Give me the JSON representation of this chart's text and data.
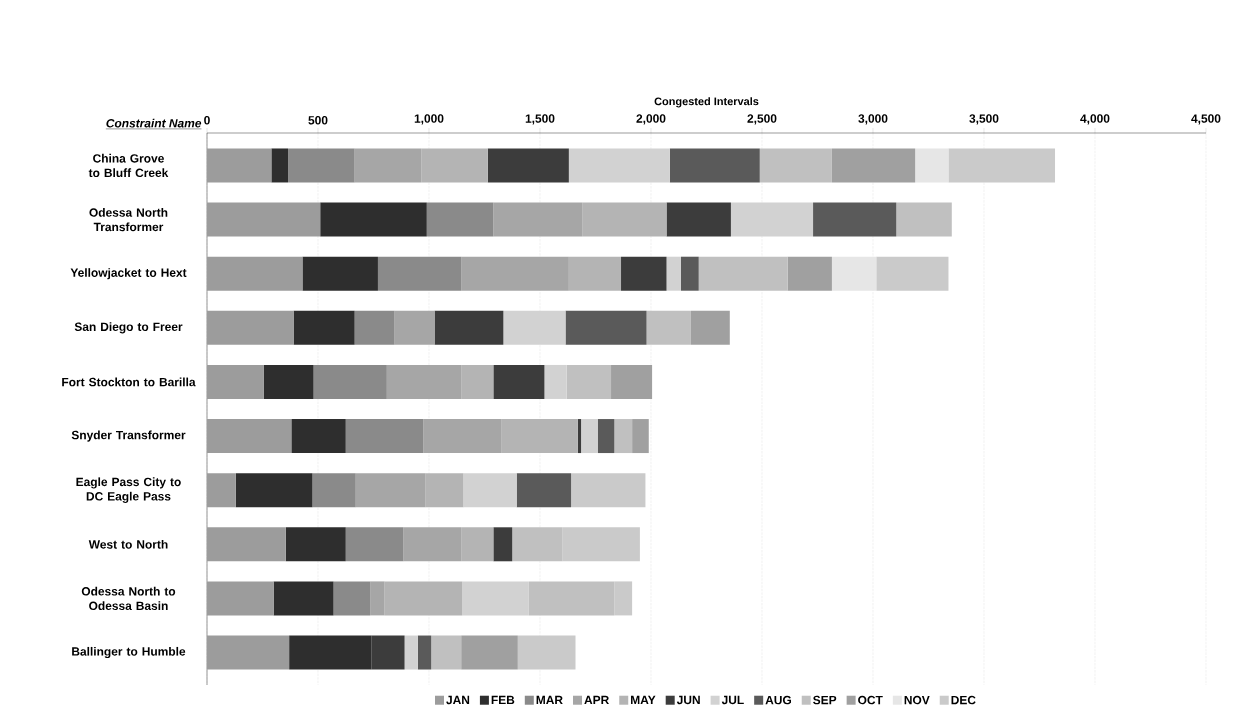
{
  "chart_data": {
    "type": "bar",
    "orientation": "horizontal",
    "stacked": true,
    "xlabel": "Congested Intervals",
    "ylabel": "Constraint Name",
    "categories": [
      "China Grove to Bluff Creek",
      "Odessa North Transformer",
      "Yellowjacket to Hext",
      "San Diego to Freer",
      "Fort Stockton to Barilla",
      "Snyder Transformer",
      "Eagle Pass City to DC Eagle Pass",
      "West to North",
      "Odessa North to Odessa Basin",
      "Ballinger to Humble"
    ],
    "xlim": [
      0,
      4500
    ],
    "xticks": [
      0,
      500,
      {
        "value": 1000,
        "label": "1,000"
      },
      {
        "value": 1500,
        "label": "1,500"
      },
      {
        "value": 2000,
        "label": "2,000"
      },
      {
        "value": 2500,
        "label": "2,500"
      },
      {
        "value": 3000,
        "label": "3,000"
      },
      {
        "value": 3500,
        "label": "3,500"
      },
      {
        "value": 4000,
        "label": "4,000"
      },
      {
        "value": 4500,
        "label": "4,500"
      }
    ],
    "grid": "x",
    "legend": "bottom",
    "series": [
      {
        "name": "JAN",
        "color": "#9c9c9c",
        "values": [
          290,
          510,
          430,
          390,
          255,
          380,
          130,
          355,
          300,
          370
        ]
      },
      {
        "name": "FEB",
        "color": "#2e2e2e",
        "values": [
          75,
          480,
          340,
          275,
          225,
          245,
          345,
          270,
          270,
          370
        ]
      },
      {
        "name": "MAR",
        "color": "#8a8a8a",
        "values": [
          300,
          300,
          375,
          180,
          330,
          350,
          195,
          260,
          165,
          0
        ]
      },
      {
        "name": "APR",
        "color": "#a6a6a6",
        "values": [
          300,
          400,
          485,
          180,
          335,
          350,
          315,
          260,
          65,
          0
        ]
      },
      {
        "name": "MAY",
        "color": "#b4b4b4",
        "values": [
          300,
          380,
          235,
          0,
          145,
          345,
          170,
          145,
          350,
          0
        ]
      },
      {
        "name": "JUN",
        "color": "#3c3c3c",
        "values": [
          365,
          290,
          205,
          310,
          230,
          15,
          0,
          85,
          0,
          150
        ]
      },
      {
        "name": "JUL",
        "color": "#d2d2d2",
        "values": [
          455,
          370,
          65,
          280,
          100,
          75,
          240,
          0,
          300,
          60
        ]
      },
      {
        "name": "AUG",
        "color": "#5a5a5a",
        "values": [
          405,
          375,
          80,
          365,
          0,
          75,
          245,
          0,
          0,
          60
        ]
      },
      {
        "name": "SEP",
        "color": "#c0c0c0",
        "values": [
          325,
          250,
          400,
          200,
          200,
          80,
          0,
          225,
          385,
          135
        ]
      },
      {
        "name": "OCT",
        "color": "#a0a0a0",
        "values": [
          375,
          0,
          200,
          175,
          185,
          75,
          0,
          0,
          0,
          255
        ]
      },
      {
        "name": "NOV",
        "color": "#e6e6e6",
        "values": [
          150,
          0,
          200,
          0,
          0,
          0,
          0,
          0,
          0,
          0
        ]
      },
      {
        "name": "DEC",
        "color": "#cacaca",
        "values": [
          480,
          0,
          325,
          0,
          0,
          0,
          335,
          350,
          80,
          260
        ]
      }
    ]
  }
}
